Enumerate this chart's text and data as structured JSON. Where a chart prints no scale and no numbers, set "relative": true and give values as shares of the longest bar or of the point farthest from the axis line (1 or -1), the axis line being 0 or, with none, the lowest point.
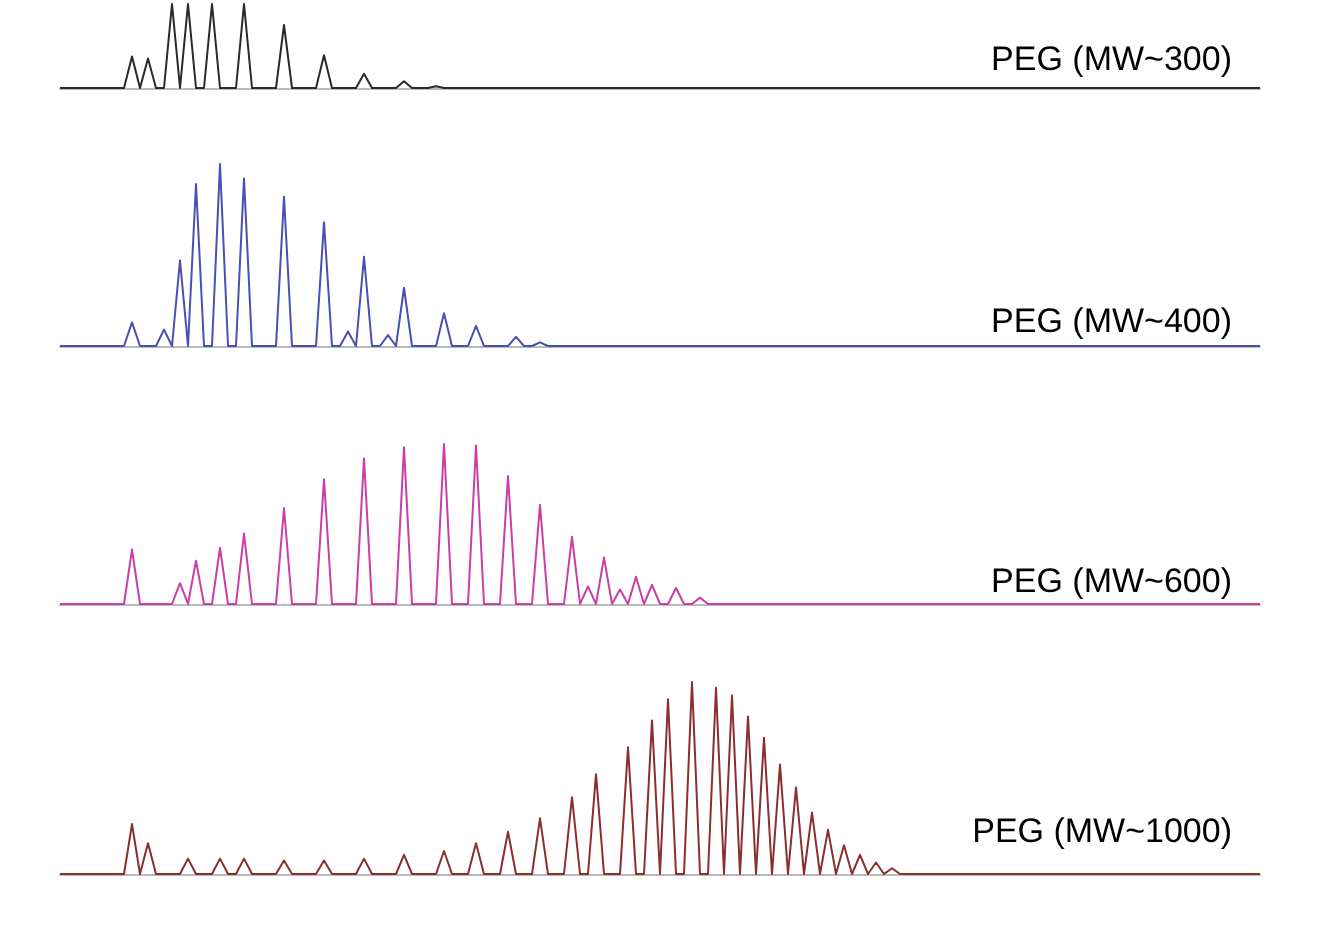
{
  "chart_data": [
    {
      "type": "line",
      "title": "PEG (MW~300)",
      "relative": true,
      "color": "#2a2a2a",
      "categories": [
        null,
        null,
        null,
        null,
        null,
        null,
        null,
        null,
        null,
        null,
        null,
        null,
        null,
        null,
        null,
        null,
        null,
        null,
        null,
        null,
        null,
        null,
        null,
        null,
        null,
        null,
        null,
        null,
        null,
        null,
        null,
        null,
        null,
        null,
        null,
        null,
        null,
        null,
        null,
        null,
        null,
        null,
        null,
        null,
        null,
        null,
        null,
        null,
        null,
        null,
        null,
        null,
        null,
        null,
        null,
        null,
        null,
        null,
        null,
        null,
        null,
        null,
        null,
        null,
        null,
        null,
        null,
        null,
        null,
        null,
        null,
        null,
        null,
        null,
        null,
        null,
        null,
        null,
        null,
        null,
        null,
        null,
        null,
        null,
        null,
        null,
        null,
        null,
        null,
        null,
        null,
        null,
        null,
        null,
        null,
        null,
        null,
        null,
        null,
        null,
        null,
        null,
        null,
        null,
        null,
        null,
        null,
        null,
        null,
        null,
        null,
        null,
        null,
        null,
        null,
        null,
        null,
        null,
        null,
        null,
        null,
        null,
        null,
        null,
        null,
        null,
        null,
        null,
        null,
        null,
        null,
        null,
        null,
        null,
        null,
        null,
        null,
        null,
        null,
        null,
        null,
        null,
        null,
        null,
        null,
        null,
        null,
        null,
        null,
        null,
        null
      ],
      "values": [
        0,
        0,
        0,
        0,
        0,
        0,
        0,
        0,
        0,
        0.375,
        0,
        0.35,
        0,
        0,
        1,
        0,
        1,
        0,
        0,
        1,
        0,
        0,
        0,
        1,
        0,
        0,
        0,
        0,
        0.75,
        0,
        0,
        0,
        0,
        0.39,
        0,
        0,
        0,
        0,
        0.17,
        0,
        0,
        0,
        0,
        0.08,
        0,
        0,
        0,
        0.02,
        0,
        0,
        0,
        0,
        0,
        0,
        0,
        0,
        0,
        0,
        0,
        0,
        0,
        0,
        0,
        0,
        0,
        0,
        0,
        0,
        0,
        0,
        0,
        0,
        0,
        0,
        0,
        0,
        0,
        0,
        0,
        0,
        0,
        0,
        0,
        0,
        0,
        0,
        0,
        0,
        0,
        0,
        0,
        0,
        0,
        0,
        0,
        0,
        0,
        0,
        0,
        0,
        0,
        0,
        0,
        0,
        0,
        0,
        0,
        0,
        0,
        0,
        0,
        0,
        0,
        0,
        0,
        0,
        0,
        0,
        0,
        0,
        0,
        0,
        0,
        0,
        0,
        0,
        0,
        0,
        0,
        0,
        0,
        0,
        0,
        0,
        0,
        0,
        0,
        0,
        0,
        0,
        0,
        0,
        0,
        0,
        0,
        0,
        0,
        0,
        0,
        0,
        0
      ]
    },
    {
      "type": "line",
      "title": "PEG (MW~400)",
      "relative": true,
      "color": "#4a4fb4",
      "categories": [
        null,
        null,
        null,
        null,
        null,
        null,
        null,
        null,
        null,
        null,
        null,
        null,
        null,
        null,
        null,
        null,
        null,
        null,
        null,
        null,
        null,
        null,
        null,
        null,
        null,
        null,
        null,
        null,
        null,
        null,
        null,
        null,
        null,
        null,
        null,
        null,
        null,
        null,
        null,
        null,
        null,
        null,
        null,
        null,
        null,
        null,
        null,
        null,
        null,
        null,
        null,
        null,
        null,
        null,
        null,
        null,
        null,
        null,
        null,
        null,
        null,
        null,
        null,
        null,
        null,
        null,
        null,
        null,
        null,
        null,
        null,
        null,
        null,
        null,
        null,
        null,
        null,
        null,
        null,
        null,
        null,
        null,
        null,
        null,
        null,
        null,
        null,
        null,
        null,
        null,
        null,
        null,
        null,
        null,
        null,
        null,
        null,
        null,
        null,
        null,
        null,
        null,
        null,
        null,
        null,
        null,
        null,
        null,
        null,
        null,
        null,
        null,
        null,
        null,
        null,
        null,
        null,
        null,
        null,
        null,
        null,
        null,
        null,
        null,
        null,
        null,
        null,
        null,
        null,
        null,
        null,
        null,
        null,
        null,
        null,
        null,
        null,
        null,
        null,
        null,
        null,
        null,
        null,
        null,
        null,
        null,
        null,
        null,
        null,
        null,
        null
      ],
      "values": [
        0,
        0,
        0,
        0,
        0,
        0,
        0,
        0,
        0,
        0.13,
        0,
        0,
        0,
        0.09,
        0,
        0.47,
        0,
        0.89,
        0,
        0,
        1,
        0,
        0,
        0.92,
        0,
        0,
        0,
        0,
        0.82,
        0,
        0,
        0,
        0,
        0.68,
        0,
        0,
        0.08,
        0,
        0.49,
        0,
        0,
        0.06,
        0,
        0.32,
        0,
        0,
        0,
        0,
        0.18,
        0,
        0,
        0,
        0.11,
        0,
        0,
        0,
        0,
        0.05,
        0,
        0,
        0.02,
        0,
        0,
        0,
        0,
        0,
        0,
        0,
        0,
        0,
        0,
        0,
        0,
        0,
        0,
        0,
        0,
        0,
        0,
        0,
        0,
        0,
        0,
        0,
        0,
        0,
        0,
        0,
        0,
        0,
        0,
        0,
        0,
        0,
        0,
        0,
        0,
        0,
        0,
        0,
        0,
        0,
        0,
        0,
        0,
        0,
        0,
        0,
        0,
        0,
        0,
        0,
        0,
        0,
        0,
        0,
        0,
        0,
        0,
        0,
        0,
        0,
        0,
        0,
        0,
        0,
        0,
        0,
        0,
        0,
        0,
        0,
        0,
        0,
        0,
        0,
        0,
        0,
        0,
        0,
        0,
        0,
        0,
        0,
        0,
        0,
        0,
        0,
        0,
        0,
        0
      ]
    },
    {
      "type": "line",
      "title": "PEG (MW~600)",
      "relative": true,
      "color": "#c93fa6",
      "categories": [
        null,
        null,
        null,
        null,
        null,
        null,
        null,
        null,
        null,
        null,
        null,
        null,
        null,
        null,
        null,
        null,
        null,
        null,
        null,
        null,
        null,
        null,
        null,
        null,
        null,
        null,
        null,
        null,
        null,
        null,
        null,
        null,
        null,
        null,
        null,
        null,
        null,
        null,
        null,
        null,
        null,
        null,
        null,
        null,
        null,
        null,
        null,
        null,
        null,
        null,
        null,
        null,
        null,
        null,
        null,
        null,
        null,
        null,
        null,
        null,
        null,
        null,
        null,
        null,
        null,
        null,
        null,
        null,
        null,
        null,
        null,
        null,
        null,
        null,
        null,
        null,
        null,
        null,
        null,
        null,
        null,
        null,
        null,
        null,
        null,
        null,
        null,
        null,
        null,
        null,
        null,
        null,
        null,
        null,
        null,
        null,
        null,
        null,
        null,
        null,
        null,
        null,
        null,
        null,
        null,
        null,
        null,
        null,
        null,
        null,
        null,
        null,
        null,
        null,
        null,
        null,
        null,
        null,
        null,
        null,
        null,
        null,
        null,
        null,
        null,
        null,
        null,
        null,
        null,
        null,
        null,
        null,
        null,
        null,
        null,
        null,
        null,
        null,
        null,
        null,
        null,
        null,
        null,
        null,
        null,
        null,
        null,
        null,
        null,
        null,
        null
      ],
      "values": [
        0,
        0,
        0,
        0,
        0,
        0,
        0,
        0,
        0,
        0.34,
        0,
        0,
        0,
        0,
        0,
        0.13,
        0,
        0.27,
        0,
        0,
        0.35,
        0,
        0,
        0.44,
        0,
        0,
        0,
        0,
        0.6,
        0,
        0,
        0,
        0,
        0.78,
        0,
        0,
        0,
        0,
        0.91,
        0,
        0,
        0,
        0,
        0.98,
        0,
        0,
        0,
        0,
        1,
        0,
        0,
        0,
        0.99,
        0,
        0,
        0,
        0.8,
        0,
        0,
        0,
        0.62,
        0,
        0,
        0,
        0.42,
        0,
        0.11,
        0,
        0.29,
        0,
        0.09,
        0,
        0.17,
        0,
        0.12,
        0,
        0,
        0.1,
        0,
        0,
        0.04,
        0,
        0,
        0,
        0,
        0,
        0,
        0,
        0,
        0,
        0,
        0,
        0,
        0,
        0,
        0,
        0,
        0,
        0,
        0,
        0,
        0,
        0,
        0,
        0,
        0,
        0,
        0,
        0,
        0,
        0,
        0,
        0,
        0,
        0,
        0,
        0,
        0,
        0,
        0,
        0,
        0,
        0,
        0,
        0,
        0,
        0,
        0,
        0,
        0,
        0,
        0,
        0,
        0,
        0,
        0,
        0,
        0,
        0,
        0,
        0,
        0,
        0,
        0,
        0,
        0,
        0,
        0,
        0,
        0,
        0
      ]
    },
    {
      "type": "line",
      "title": "PEG (MW~1000)",
      "relative": true,
      "color": "#8b2e2e",
      "categories": [
        null,
        null,
        null,
        null,
        null,
        null,
        null,
        null,
        null,
        null,
        null,
        null,
        null,
        null,
        null,
        null,
        null,
        null,
        null,
        null,
        null,
        null,
        null,
        null,
        null,
        null,
        null,
        null,
        null,
        null,
        null,
        null,
        null,
        null,
        null,
        null,
        null,
        null,
        null,
        null,
        null,
        null,
        null,
        null,
        null,
        null,
        null,
        null,
        null,
        null,
        null,
        null,
        null,
        null,
        null,
        null,
        null,
        null,
        null,
        null,
        null,
        null,
        null,
        null,
        null,
        null,
        null,
        null,
        null,
        null,
        null,
        null,
        null,
        null,
        null,
        null,
        null,
        null,
        null,
        null,
        null,
        null,
        null,
        null,
        null,
        null,
        null,
        null,
        null,
        null,
        null,
        null,
        null,
        null,
        null,
        null,
        null,
        null,
        null,
        null,
        null,
        null,
        null,
        null,
        null,
        null,
        null,
        null,
        null,
        null,
        null,
        null,
        null,
        null,
        null,
        null,
        null,
        null,
        null,
        null,
        null,
        null,
        null,
        null,
        null,
        null,
        null,
        null,
        null,
        null,
        null,
        null,
        null,
        null,
        null,
        null,
        null,
        null,
        null,
        null,
        null,
        null,
        null,
        null,
        null,
        null,
        null,
        null,
        null,
        null,
        null
      ],
      "values": [
        0,
        0,
        0,
        0,
        0,
        0,
        0,
        0,
        0,
        0.26,
        0,
        0.16,
        0,
        0,
        0,
        0,
        0.08,
        0,
        0,
        0,
        0.08,
        0,
        0,
        0.08,
        0,
        0,
        0,
        0,
        0.07,
        0,
        0,
        0,
        0,
        0.07,
        0,
        0,
        0,
        0,
        0.08,
        0,
        0,
        0,
        0,
        0.1,
        0,
        0,
        0,
        0,
        0.12,
        0,
        0,
        0,
        0.16,
        0,
        0,
        0,
        0.22,
        0,
        0,
        0,
        0.29,
        0,
        0,
        0,
        0.4,
        0,
        0,
        0.52,
        0,
        0,
        0,
        0.66,
        0,
        0,
        0.8,
        0,
        0.91,
        0,
        0,
        1,
        0,
        0,
        0.97,
        0,
        0.93,
        0,
        0.82,
        0,
        0.71,
        0,
        0.57,
        0,
        0.45,
        0,
        0.32,
        0,
        0.23,
        0,
        0.15,
        0,
        0.1,
        0,
        0.06,
        0,
        0.03,
        0,
        0,
        0,
        0,
        0,
        0,
        0,
        0,
        0,
        0,
        0,
        0,
        0,
        0,
        0,
        0,
        0,
        0,
        0,
        0,
        0,
        0,
        0,
        0,
        0,
        0,
        0,
        0,
        0,
        0,
        0,
        0,
        0,
        0,
        0,
        0,
        0,
        0,
        0,
        0,
        0,
        0,
        0,
        0,
        0,
        0
      ]
    }
  ]
}
